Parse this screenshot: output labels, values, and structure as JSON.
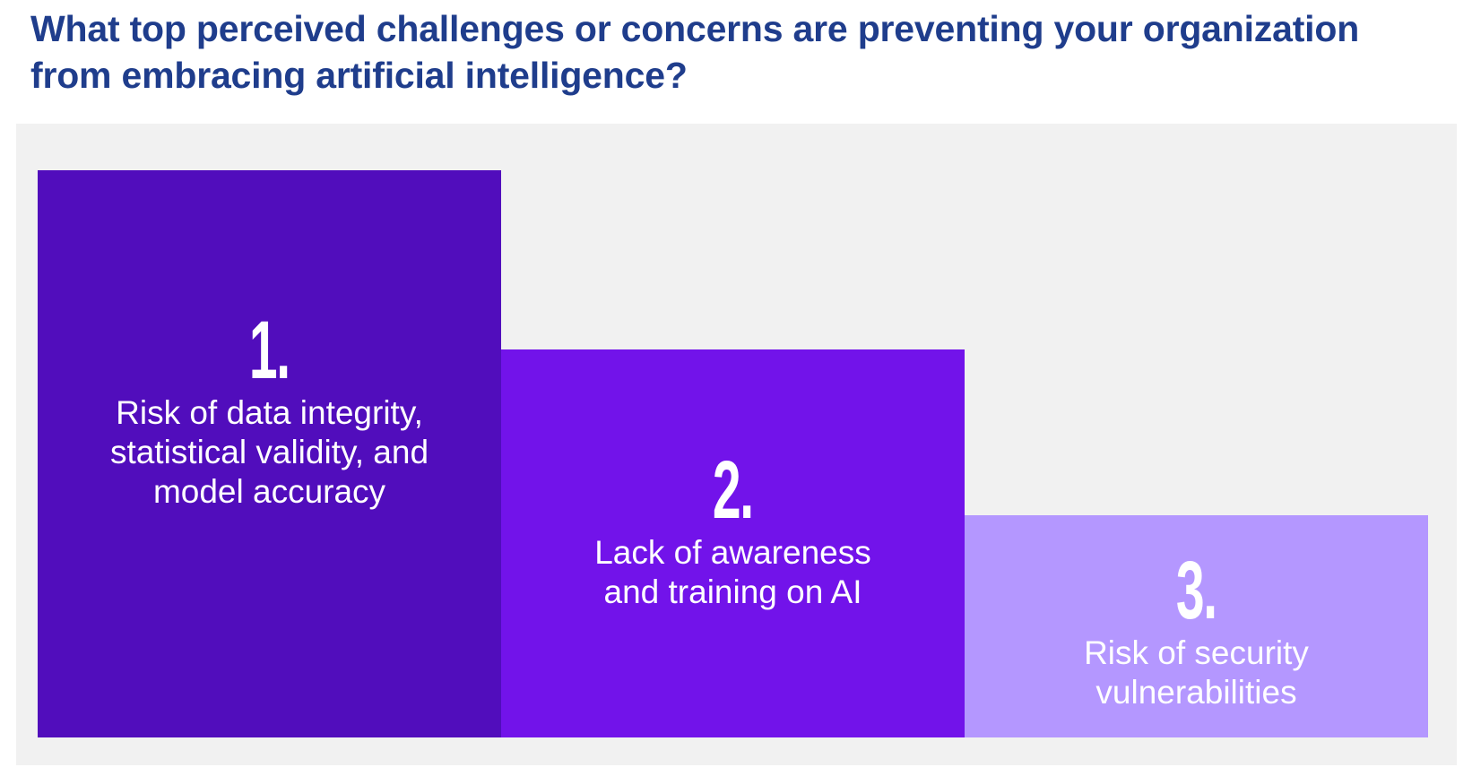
{
  "title": "What top perceived challenges or concerns are preventing your organization from embracing artificial intelligence?",
  "steps": [
    {
      "rank": "1.",
      "label": "Risk of data integrity, statistical validity, and model accuracy",
      "color": "#510dbc"
    },
    {
      "rank": "2.",
      "label": "Lack of awareness and training on AI",
      "color": "#7213ea"
    },
    {
      "rank": "3.",
      "label": "Risk of security vulnerabilities",
      "color": "#b497ff"
    }
  ],
  "colors": {
    "title": "#1f3d8c",
    "panel_background": "#f1f1f1"
  }
}
